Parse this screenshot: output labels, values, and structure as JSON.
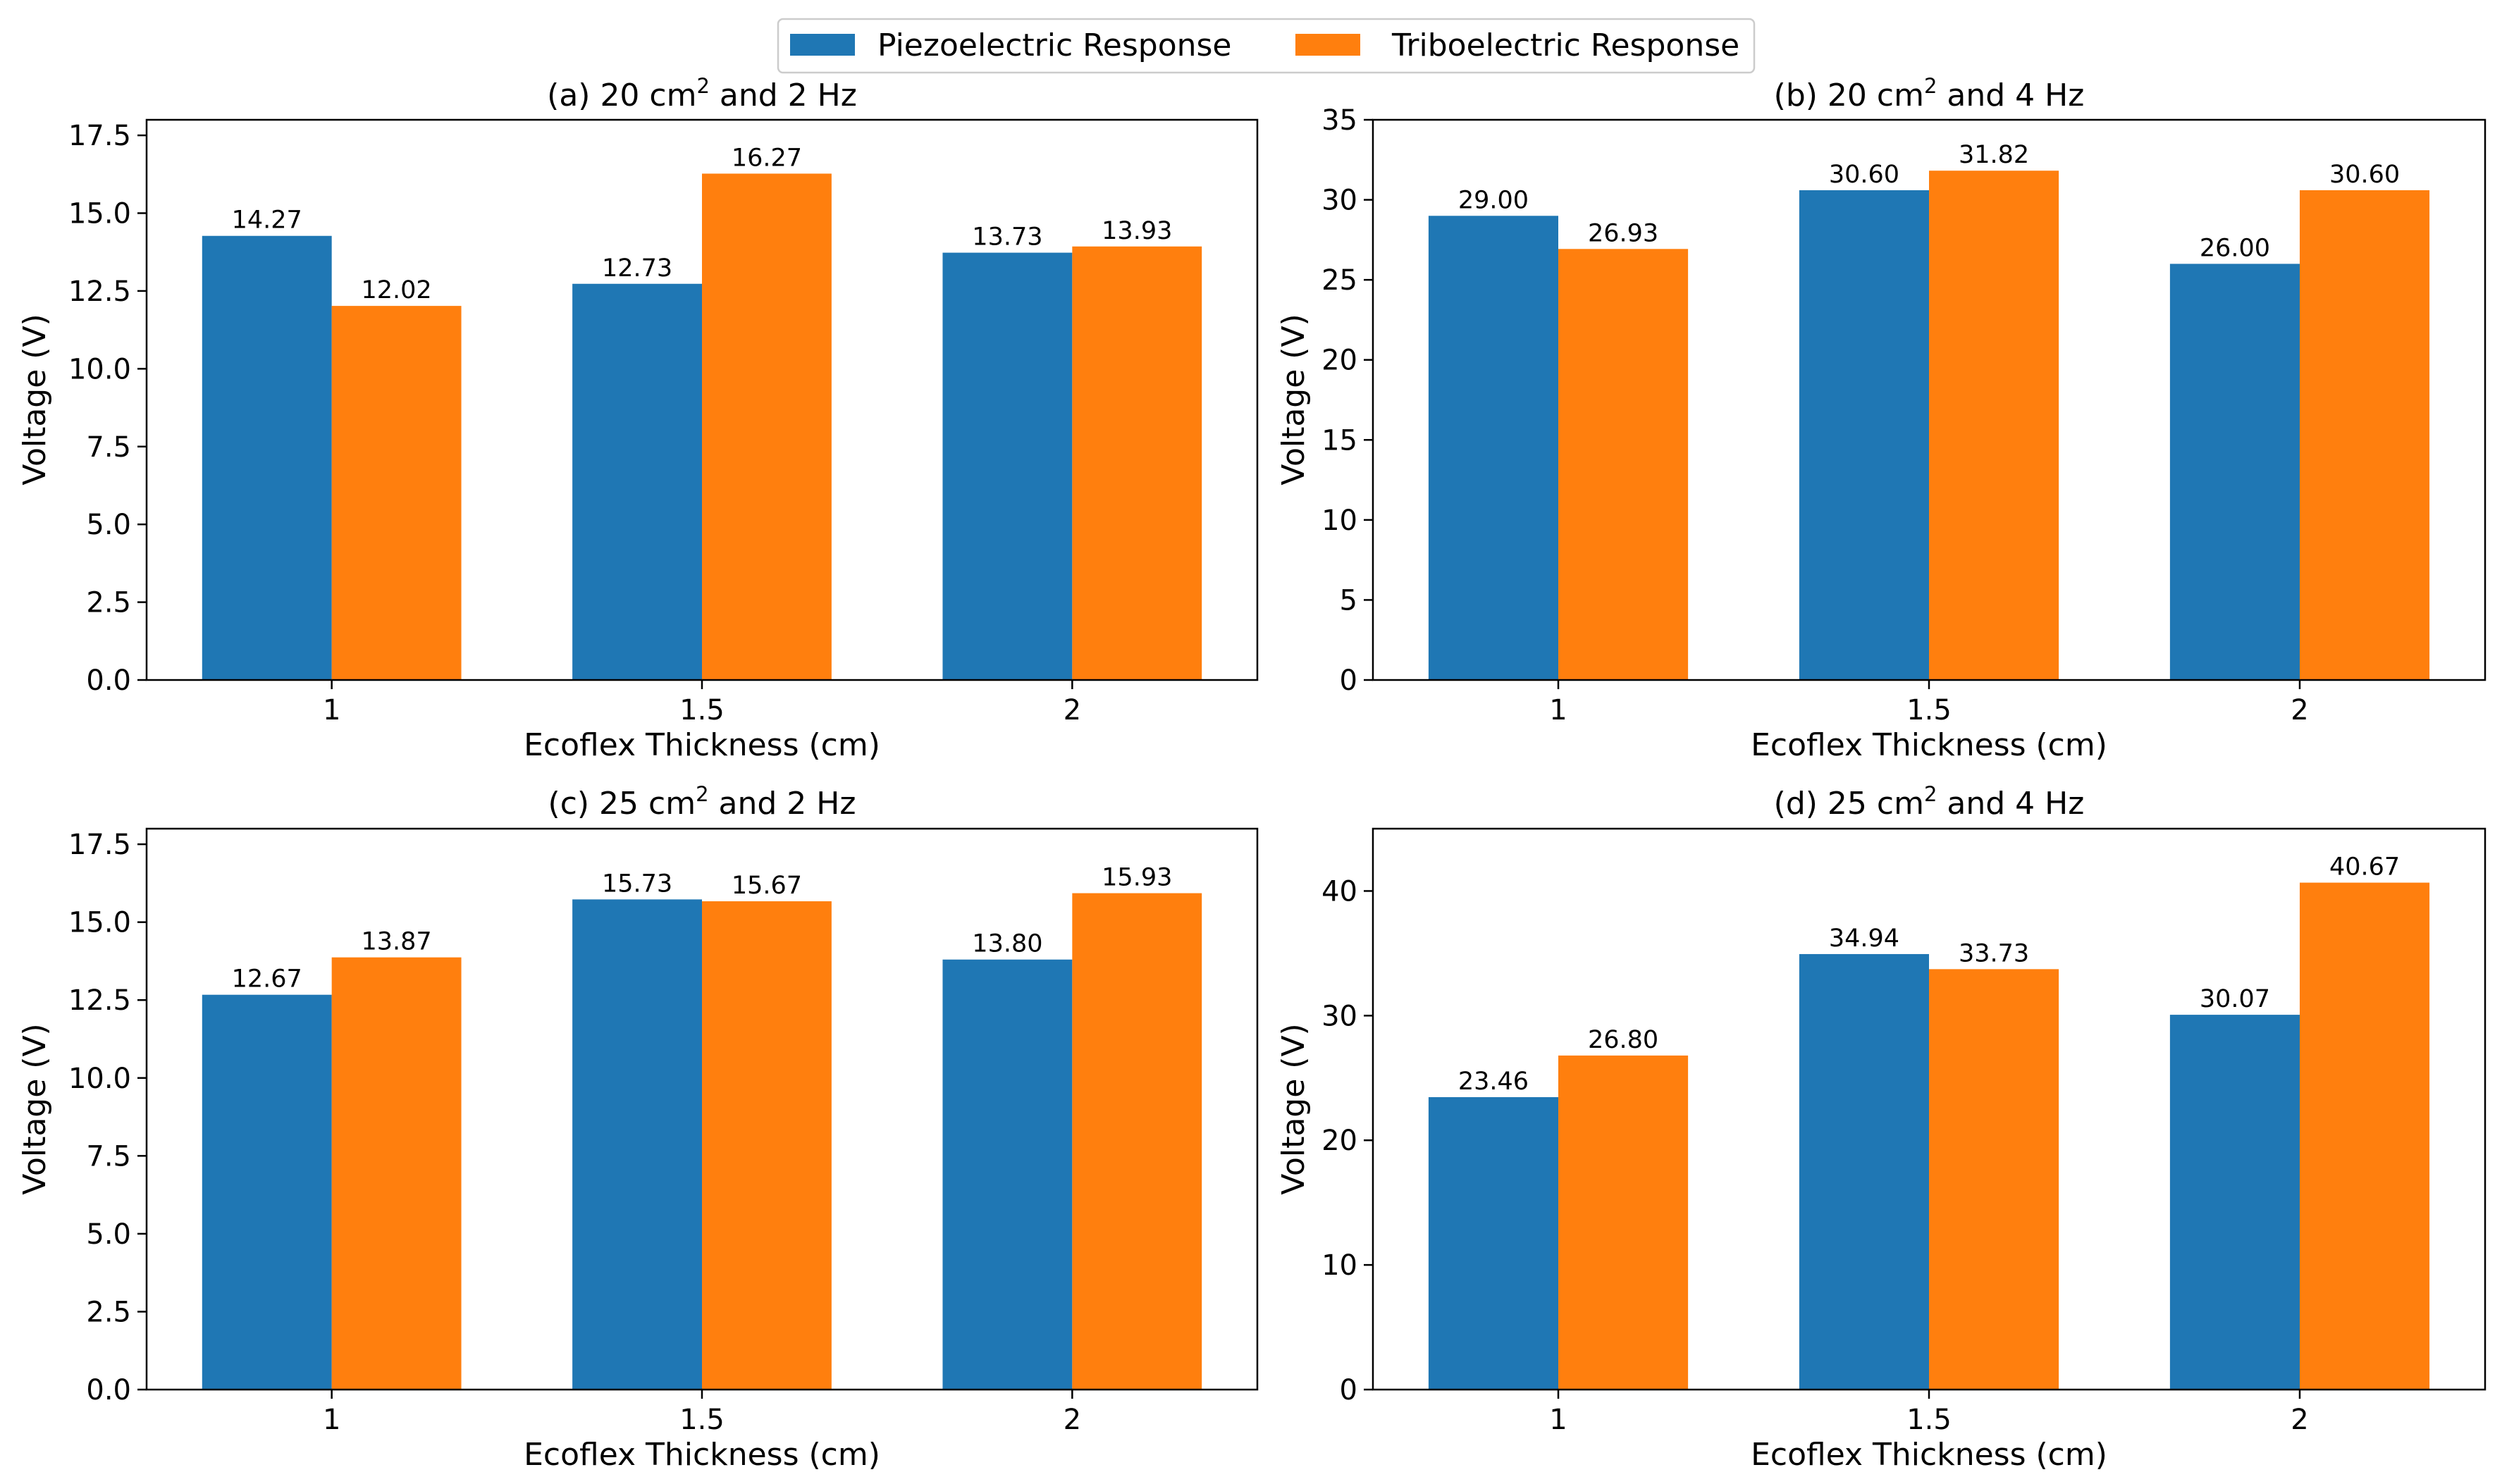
{
  "legend": {
    "entries": [
      {
        "name": "Piezoelectric Response",
        "color": "#1f77b4"
      },
      {
        "name": "Triboelectric Response",
        "color": "#ff7f0e"
      }
    ]
  },
  "chart_data": [
    {
      "type": "bar",
      "title": "(a) 20 cm",
      "title_sup": "2",
      "title_tail": " and 2 Hz",
      "xlabel": "Ecoflex Thickness (cm)",
      "ylabel": "Voltage (V)",
      "categories": [
        "1",
        "1.5",
        "2"
      ],
      "ylim": [
        0,
        18
      ],
      "yticks": [
        0,
        2.5,
        5,
        7.5,
        10,
        12.5,
        15,
        17.5
      ],
      "ytick_labels": [
        "0.0",
        "2.5",
        "5.0",
        "7.5",
        "10.0",
        "12.5",
        "15.0",
        "17.5"
      ],
      "series": [
        {
          "name": "Piezoelectric Response",
          "values": [
            14.27,
            12.73,
            13.73
          ],
          "labels": [
            "14.27",
            "12.73",
            "13.73"
          ]
        },
        {
          "name": "Triboelectric Response",
          "values": [
            12.02,
            16.27,
            13.93
          ],
          "labels": [
            "12.02",
            "16.27",
            "13.93"
          ]
        }
      ]
    },
    {
      "type": "bar",
      "title": "(b) 20 cm",
      "title_sup": "2",
      "title_tail": " and 4 Hz",
      "xlabel": "Ecoflex Thickness (cm)",
      "ylabel": "Voltage (V)",
      "categories": [
        "1",
        "1.5",
        "2"
      ],
      "ylim": [
        0,
        35
      ],
      "yticks": [
        0,
        5,
        10,
        15,
        20,
        25,
        30,
        35
      ],
      "ytick_labels": [
        "0",
        "5",
        "10",
        "15",
        "20",
        "25",
        "30",
        "35"
      ],
      "series": [
        {
          "name": "Piezoelectric Response",
          "values": [
            29.0,
            30.6,
            26.0
          ],
          "labels": [
            "29.00",
            "30.60",
            "26.00"
          ]
        },
        {
          "name": "Triboelectric Response",
          "values": [
            26.93,
            31.82,
            30.6
          ],
          "labels": [
            "26.93",
            "31.82",
            "30.60"
          ]
        }
      ]
    },
    {
      "type": "bar",
      "title": "(c) 25 cm",
      "title_sup": "2",
      "title_tail": " and 2 Hz",
      "xlabel": "Ecoflex Thickness (cm)",
      "ylabel": "Voltage (V)",
      "categories": [
        "1",
        "1.5",
        "2"
      ],
      "ylim": [
        0,
        18
      ],
      "yticks": [
        0,
        2.5,
        5,
        7.5,
        10,
        12.5,
        15,
        17.5
      ],
      "ytick_labels": [
        "0.0",
        "2.5",
        "5.0",
        "7.5",
        "10.0",
        "12.5",
        "15.0",
        "17.5"
      ],
      "series": [
        {
          "name": "Piezoelectric Response",
          "values": [
            12.67,
            15.73,
            13.8
          ],
          "labels": [
            "12.67",
            "15.73",
            "13.80"
          ]
        },
        {
          "name": "Triboelectric Response",
          "values": [
            13.87,
            15.67,
            15.93
          ],
          "labels": [
            "13.87",
            "15.67",
            "15.93"
          ]
        }
      ]
    },
    {
      "type": "bar",
      "title": "(d) 25 cm",
      "title_sup": "2",
      "title_tail": " and 4 Hz",
      "xlabel": "Ecoflex Thickness (cm)",
      "ylabel": "Voltage (V)",
      "categories": [
        "1",
        "1.5",
        "2"
      ],
      "ylim": [
        0,
        45
      ],
      "yticks": [
        0,
        10,
        20,
        30,
        40
      ],
      "ytick_labels": [
        "0",
        "10",
        "20",
        "30",
        "40"
      ],
      "series": [
        {
          "name": "Piezoelectric Response",
          "values": [
            23.46,
            34.94,
            30.07
          ],
          "labels": [
            "23.46",
            "34.94",
            "30.07"
          ]
        },
        {
          "name": "Triboelectric Response",
          "values": [
            26.8,
            33.73,
            40.67
          ],
          "labels": [
            "26.80",
            "33.73",
            "40.67"
          ]
        }
      ]
    }
  ]
}
